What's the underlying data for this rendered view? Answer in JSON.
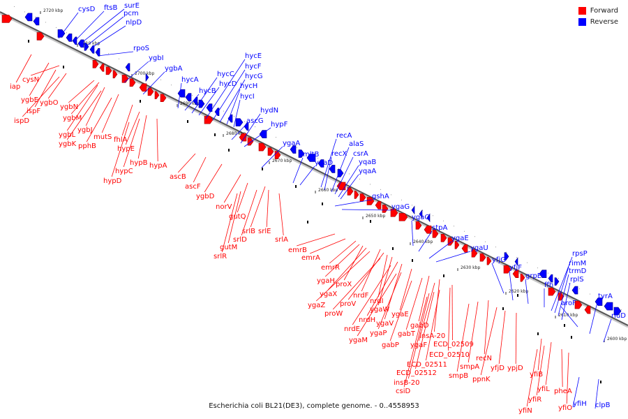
{
  "caption": "Escherichia coli BL21(DE3), complete genome. - 0..4558953",
  "legend": [
    {
      "label": "Forward",
      "color": "#ff0000"
    },
    {
      "label": "Reverse",
      "color": "#0000ff"
    }
  ],
  "colors": {
    "forward": "#ff0000",
    "reverse": "#0000ff",
    "axis": "#555555"
  },
  "ticks": [
    "2720 kbp",
    "2710 kbp",
    "2700 kbp",
    "2690 kbp",
    "2680 kbp",
    "2670 kbp",
    "2660 kbp",
    "2650 kbp",
    "2640 kbp",
    "2630 kbp",
    "2620 kbp",
    "2610 kbp",
    "2600 kbp"
  ],
  "forward_genes": [
    "iap",
    "ygbE",
    "cysN",
    "ispF",
    "ygbO",
    "ispD",
    "ygbN",
    "ygbM",
    "ygbL",
    "ygbJ",
    "ygbK",
    "mutS",
    "pphB",
    "fhlA",
    "hypE",
    "hypB",
    "hypC",
    "hypA",
    "hypD",
    "ascB",
    "ascF",
    "ygbD",
    "norV",
    "gutQ",
    "srlB",
    "srlD",
    "srlE",
    "gutM",
    "srlA",
    "srlR",
    "emrB",
    "emrA",
    "emrR",
    "ygaH",
    "proX",
    "ygaX",
    "nrdF",
    "ygaZ",
    "proV",
    "nrdI",
    "ygaW",
    "proW",
    "nrdH",
    "ygaV",
    "nrdE",
    "ygaE",
    "ygaP",
    "ygaM",
    "gabD",
    "gabT",
    "insA-20",
    "gabP",
    "ygaF",
    "ECD_02509",
    "ECD_02510",
    "ECD_02511",
    "ECD_02512",
    "insB-20",
    "csiD",
    "recN",
    "smpA",
    "smpB",
    "ppnK",
    "yfjD",
    "ypjD",
    "yfiB",
    "yfiL",
    "yfiR",
    "yfiN",
    "pheA",
    "yfiO"
  ],
  "reverse_genes": [
    "cysD",
    "ftsB",
    "surE",
    "pcm",
    "nlpD",
    "rpoS",
    "ygbI",
    "ygbA",
    "hycA",
    "hycB",
    "hycC",
    "hycD",
    "hycE",
    "hycF",
    "hycG",
    "hycH",
    "hycI",
    "ascG",
    "hydN",
    "hypF",
    "ygaA",
    "mltB",
    "ygaD",
    "recA",
    "recX",
    "alaS",
    "csrA",
    "yqaB",
    "yqaA",
    "gshA",
    "ygaG",
    "ygaC",
    "stpA",
    "ygaE",
    "ygaU",
    "yfjG",
    "yfjF",
    "grpE",
    "ffh",
    "rpsP",
    "rimM",
    "trmD",
    "rplS",
    "aroF",
    "tyrA",
    "yfiH",
    "rluD",
    "clpB"
  ]
}
